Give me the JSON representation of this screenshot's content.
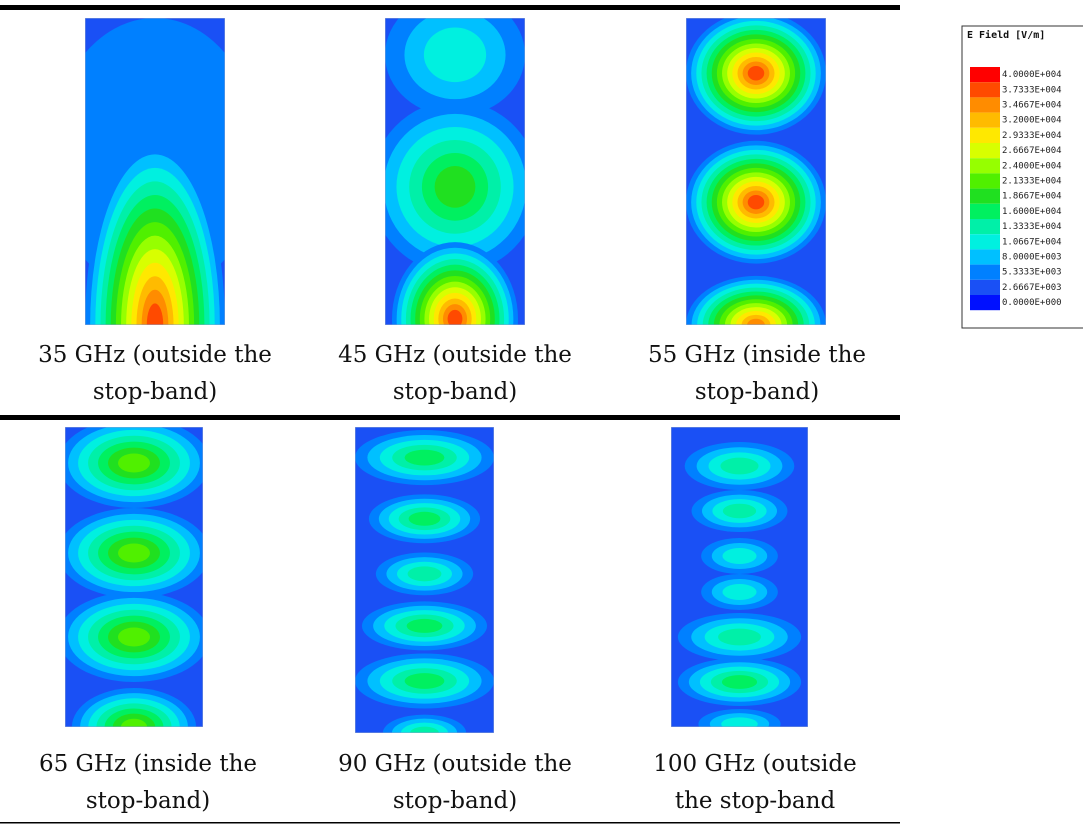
{
  "captions": [
    {
      "line1": "35 GHz (outside the",
      "line2": "stop-band)"
    },
    {
      "line1": "45 GHz (outside the",
      "line2": "stop-band)"
    },
    {
      "line1": "55 GHz (inside the",
      "line2": "stop-band)"
    },
    {
      "line1": "65 GHz (inside the",
      "line2": "stop-band)"
    },
    {
      "line1": "90 GHz (outside the",
      "line2": "stop-band)"
    },
    {
      "line1": "100 GHz (outside",
      "line2": "the stop-band"
    }
  ],
  "legend": {
    "title": "E Field [V/m]",
    "entries": [
      {
        "label": "4.0000E+004",
        "color": "#ff0000"
      },
      {
        "label": "3.7333E+004",
        "color": "#ff4a00"
      },
      {
        "label": "3.4667E+004",
        "color": "#ff8c00"
      },
      {
        "label": "3.2000E+004",
        "color": "#ffbb00"
      },
      {
        "label": "2.9333E+004",
        "color": "#ffe800"
      },
      {
        "label": "2.6667E+004",
        "color": "#d8ff00"
      },
      {
        "label": "2.4000E+004",
        "color": "#96ff00"
      },
      {
        "label": "2.1333E+004",
        "color": "#50f000"
      },
      {
        "label": "1.8667E+004",
        "color": "#20e020"
      },
      {
        "label": "1.6000E+004",
        "color": "#00f060"
      },
      {
        "label": "1.3333E+004",
        "color": "#00f0a8"
      },
      {
        "label": "1.0667E+004",
        "color": "#00f0e0"
      },
      {
        "label": "8.0000E+003",
        "color": "#00c0ff"
      },
      {
        "label": "5.3333E+003",
        "color": "#0080ff"
      },
      {
        "label": "2.6667E+003",
        "color": "#1a50f5"
      },
      {
        "label": "0.0000E+000",
        "color": "#0010ff"
      }
    ]
  }
}
